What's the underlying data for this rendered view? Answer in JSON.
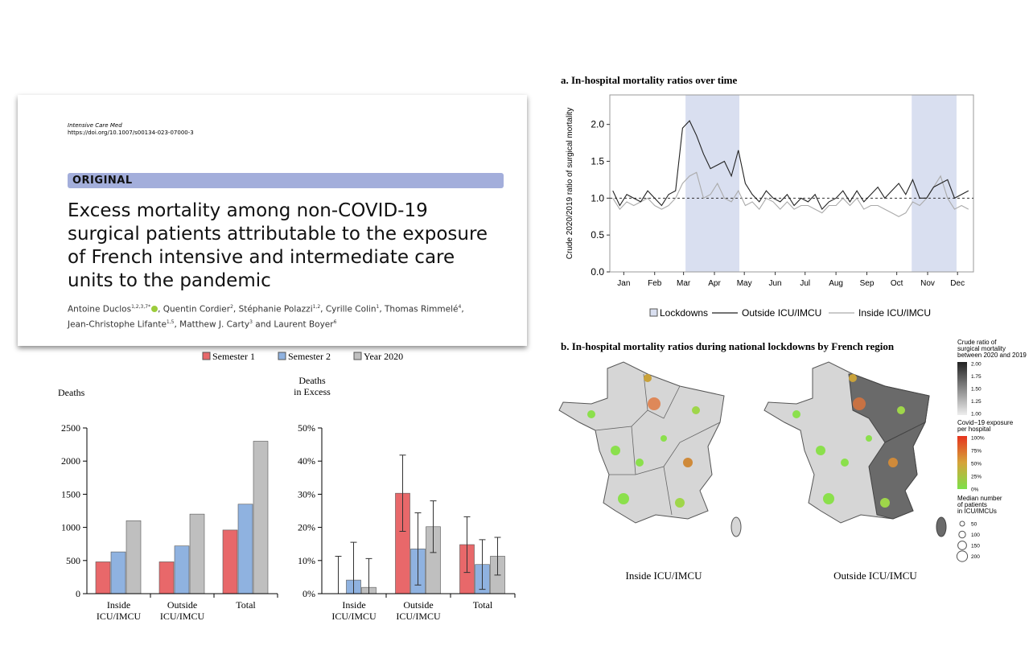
{
  "paper": {
    "journal": "Intensive Care Med",
    "doi": "https://doi.org/10.1007/s00134-023-07000-3",
    "section": "ORIGINAL",
    "title": "Excess mortality among non-COVID-19 surgical patients attributable to the exposure of French intensive and intermediate care units to the pandemic",
    "authors": [
      {
        "text": "Antoine Duclos",
        "sup": "1,2,3,7*"
      },
      {
        "text": ", Quentin Cordier",
        "sup": "2"
      },
      {
        "text": ", Stéphanie Polazzi",
        "sup": "1,2"
      },
      {
        "text": ", Cyrille Colin",
        "sup": "1"
      },
      {
        "text": ", Thomas Rimmelé",
        "sup": "4"
      },
      {
        "text": ","
      },
      {
        "text": "Jean-Christophe Lifante",
        "sup": "1,5"
      },
      {
        "text": ", Matthew J. Carty",
        "sup": "3"
      },
      {
        "text": " and Laurent Boyer",
        "sup": "6"
      }
    ]
  },
  "chart_data": [
    {
      "type": "bar",
      "y_label": [
        "Deaths"
      ],
      "categories": [
        "Inside ICU/IMCU",
        "Outside ICU/IMCU",
        "Total"
      ],
      "series": [
        {
          "name": "Semester 1",
          "color": "#e8686a",
          "values": [
            480,
            480,
            960
          ]
        },
        {
          "name": "Semester 2",
          "color": "#8fb2e0",
          "values": [
            630,
            720,
            1350
          ]
        },
        {
          "name": "Year 2020",
          "color": "#bfbfbf",
          "values": [
            1100,
            1200,
            2300
          ]
        }
      ],
      "ylim": [
        0,
        2500
      ],
      "yticks": [
        0,
        500,
        1000,
        1500,
        2000,
        2500
      ]
    },
    {
      "type": "bar",
      "y_label": [
        "Deaths",
        "in Excess"
      ],
      "categories": [
        "Inside ICU/IMCU",
        "Outside ICU/IMCU",
        "Total"
      ],
      "series": [
        {
          "name": "Semester 1",
          "color": "#e8686a",
          "values": [
            0,
            30.3,
            14.8
          ],
          "errors": [
            11.3,
            11.5,
            8.4
          ]
        },
        {
          "name": "Semester 2",
          "color": "#8fb2e0",
          "values": [
            4.1,
            13.5,
            8.8
          ],
          "errors": [
            11.4,
            10.9,
            7.5
          ]
        },
        {
          "name": "Year 2020",
          "color": "#bfbfbf",
          "values": [
            1.9,
            20.2,
            11.3
          ],
          "errors": [
            8.7,
            7.8,
            5.7
          ]
        }
      ],
      "ylim": [
        0,
        50
      ],
      "yticks": [
        {
          "value": 0,
          "label": "0%"
        },
        {
          "value": 10,
          "label": "10%"
        },
        {
          "value": 20,
          "label": "20%"
        },
        {
          "value": 30,
          "label": "30%"
        },
        {
          "value": 40,
          "label": "40%"
        },
        {
          "value": 50,
          "label": "50%"
        }
      ]
    },
    {
      "type": "line",
      "title": "a. In-hospital mortality ratios over time",
      "y_label": "Crude 2020/2019 ratio of surgical mortality",
      "x": [
        4,
        11,
        18,
        25,
        32,
        39,
        46,
        53,
        60,
        67,
        74,
        81,
        88,
        95,
        102,
        109,
        116,
        123,
        130,
        137,
        144,
        151,
        158,
        165,
        172,
        179,
        186,
        193,
        200,
        207,
        214,
        221,
        228,
        235,
        242,
        249,
        256,
        263,
        270,
        277,
        284,
        291,
        298,
        305,
        312,
        319,
        326,
        333,
        340,
        347,
        354,
        361
      ],
      "series": [
        {
          "name": "Outside ICU/IMCU",
          "color": "#222222",
          "values": [
            1.1,
            0.9,
            1.05,
            1.0,
            0.95,
            1.1,
            1.0,
            0.9,
            1.05,
            1.1,
            1.95,
            2.05,
            1.85,
            1.6,
            1.4,
            1.45,
            1.5,
            1.3,
            1.65,
            1.2,
            1.05,
            0.95,
            1.1,
            1.0,
            0.95,
            1.05,
            0.9,
            1.0,
            0.95,
            1.05,
            0.85,
            0.95,
            1.0,
            1.1,
            0.95,
            1.1,
            0.95,
            1.05,
            1.15,
            1.0,
            1.1,
            1.2,
            1.05,
            1.25,
            1.0,
            1.0,
            1.15,
            1.2,
            1.25,
            1.0,
            1.05,
            1.1
          ]
        },
        {
          "name": "Inside ICU/IMCU",
          "color": "#aaaaaa",
          "values": [
            1.0,
            0.85,
            0.95,
            0.9,
            0.95,
            1.0,
            0.9,
            0.85,
            0.9,
            1.0,
            1.2,
            1.3,
            1.35,
            1.0,
            1.05,
            1.2,
            1.0,
            0.95,
            1.1,
            0.9,
            0.95,
            0.85,
            1.0,
            0.95,
            0.85,
            0.95,
            0.85,
            0.9,
            0.9,
            0.85,
            0.8,
            0.9,
            0.9,
            1.0,
            0.9,
            1.0,
            0.85,
            0.9,
            0.9,
            0.85,
            0.8,
            0.75,
            0.8,
            0.95,
            0.9,
            1.0,
            1.15,
            1.3,
            1.0,
            0.85,
            0.9,
            0.85
          ]
        }
      ],
      "lockdowns": {
        "name": "Lockdowns",
        "color": "#d9dff0",
        "spans": [
          [
            77,
            131
          ],
          [
            304,
            349
          ]
        ]
      },
      "reference_line": 1,
      "xlim": [
        1,
        366
      ],
      "xticks": [
        {
          "value": 15,
          "label": "Jan"
        },
        {
          "value": 46,
          "label": "Feb"
        },
        {
          "value": 75,
          "label": "Mar"
        },
        {
          "value": 106,
          "label": "Apr"
        },
        {
          "value": 136,
          "label": "May"
        },
        {
          "value": 167,
          "label": "Jun"
        },
        {
          "value": 197,
          "label": "Jul"
        },
        {
          "value": 228,
          "label": "Aug"
        },
        {
          "value": 259,
          "label": "Sep"
        },
        {
          "value": 289,
          "label": "Oct"
        },
        {
          "value": 320,
          "label": "Nov"
        },
        {
          "value": 350,
          "label": "Dec"
        }
      ],
      "ylim": [
        0,
        2.4
      ],
      "yticks": [
        {
          "value": 0,
          "label": "0.0"
        },
        {
          "value": 0.5,
          "label": "0.5"
        },
        {
          "value": 1,
          "label": "1.0"
        },
        {
          "value": 1.5,
          "label": "1.5"
        },
        {
          "value": 2,
          "label": "2.0"
        }
      ]
    }
  ],
  "map_figure": {
    "title": "b. In-hospital mortality ratios during national lockdowns by French region",
    "captions": [
      "Inside ICU/IMCU",
      "Outside ICU/IMCU"
    ],
    "ratio_legend": {
      "title": [
        "Crude ratio of",
        "surgical mortality",
        "between 2020 and 2019"
      ],
      "labels": [
        "2.00",
        "1.75",
        "1.50",
        "1.25",
        "1.00"
      ]
    },
    "exposure_legend": {
      "title": [
        "Covid−19 exposure",
        "per hospital"
      ],
      "labels": [
        "100%",
        "75%",
        "50%",
        "25%",
        "0%"
      ]
    },
    "size_legend": {
      "title": [
        "Median number",
        "of patients",
        "in ICU/IMCUs"
      ],
      "labels": [
        "50",
        "100",
        "150",
        "200"
      ]
    }
  }
}
